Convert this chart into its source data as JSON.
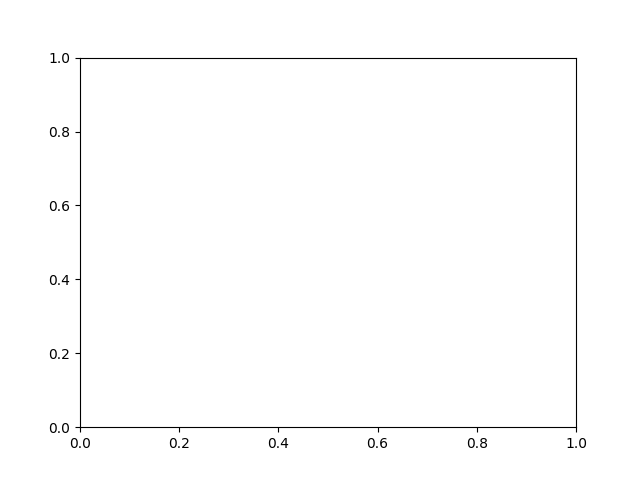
{
  "bg_color": "#e8e8e8",
  "bond_color": "#2a2a2a",
  "N_color": "#0000cc",
  "O_color": "#cc0000",
  "H_color": "#007777",
  "lw": 1.5,
  "dbo": 0.12,
  "fsz": 8.0,
  "fsz_s": 7.0
}
